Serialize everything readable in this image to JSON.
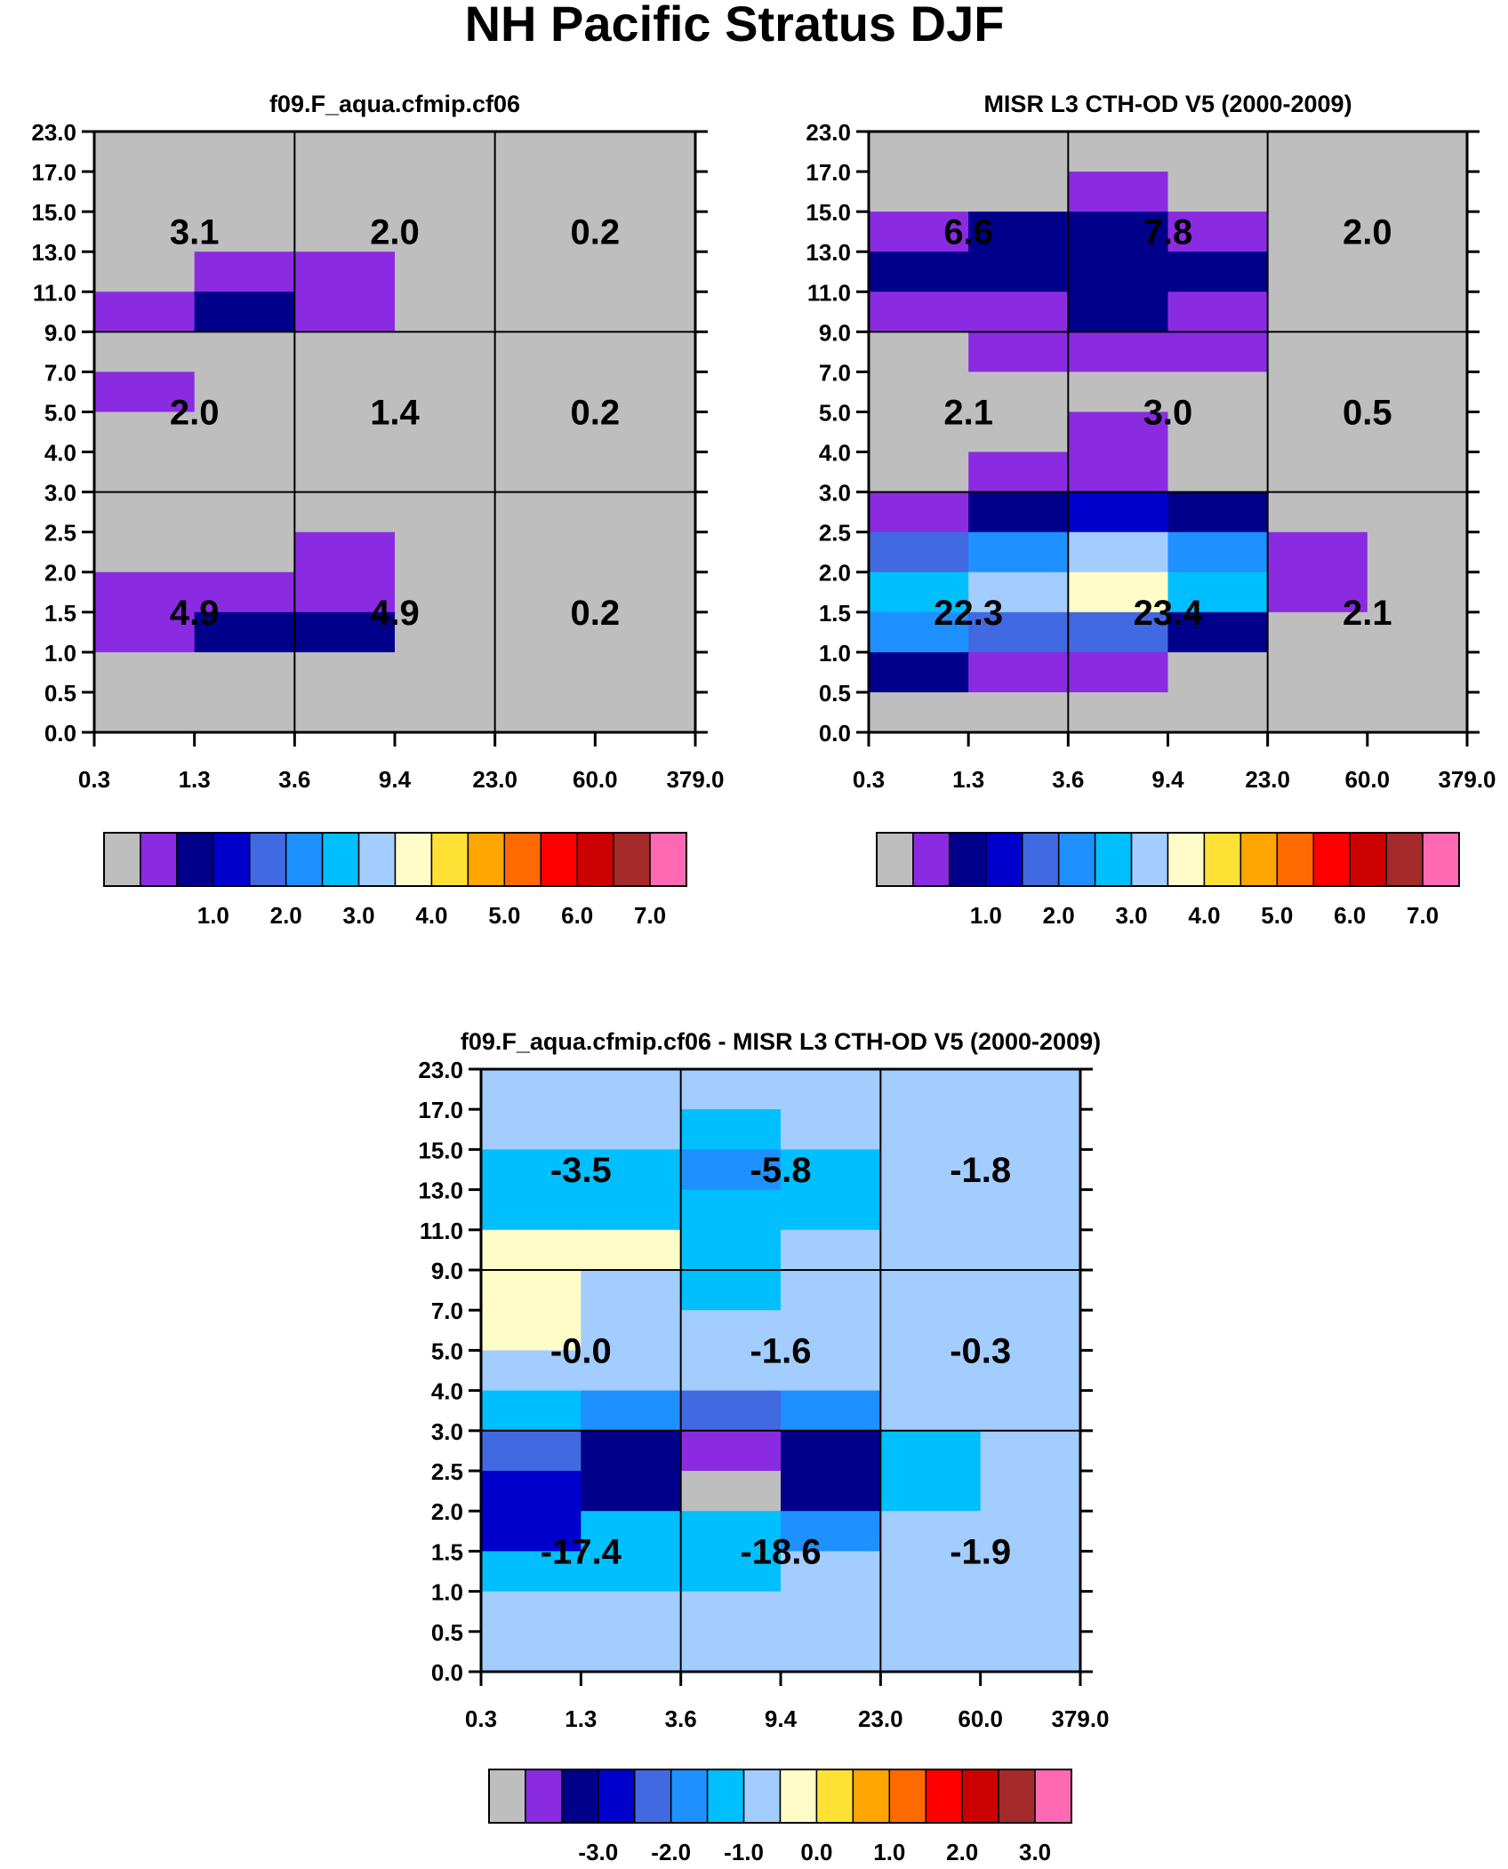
{
  "title": "NH Pacific Stratus DJF",
  "tau_ticks": [
    "0.3",
    "1.3",
    "3.6",
    "9.4",
    "23.0",
    "60.0",
    "379.0"
  ],
  "cth_ticks": [
    "0.0",
    "0.5",
    "1.0",
    "1.5",
    "2.0",
    "2.5",
    "3.0",
    "4.0",
    "5.0",
    "7.0",
    "9.0",
    "11.0",
    "13.0",
    "15.0",
    "17.0",
    "23.0"
  ],
  "colors": {
    "palette": [
      "#bebebe",
      "#8a2be2",
      "#00008b",
      "#0000cd",
      "#4169e1",
      "#1e90ff",
      "#00bfff",
      "#a2cdfe",
      "#fffcc8",
      "#ffe135",
      "#ffa500",
      "#ff6a00",
      "#ff0000",
      "#cd0000",
      "#a52a2a",
      "#ff69b4"
    ]
  },
  "chart_data": [
    {
      "id": "model",
      "type": "heatmap",
      "title": "f09.F_aqua.cfmip.cf06",
      "xlabel": "",
      "ylabel": "",
      "x_bins": [
        "0.3",
        "1.3",
        "3.6",
        "9.4",
        "23.0",
        "60.0",
        "379.0"
      ],
      "y_bins": [
        "0.0",
        "0.5",
        "1.0",
        "1.5",
        "2.0",
        "2.5",
        "3.0",
        "4.0",
        "5.0",
        "7.0",
        "9.0",
        "11.0",
        "13.0",
        "15.0",
        "17.0",
        "23.0"
      ],
      "color_index_grid_top_to_bottom": [
        [
          0,
          0,
          0,
          0,
          0,
          0
        ],
        [
          0,
          0,
          0,
          0,
          0,
          0
        ],
        [
          0,
          0,
          0,
          0,
          0,
          0
        ],
        [
          0,
          1,
          1,
          0,
          0,
          0
        ],
        [
          1,
          2,
          1,
          0,
          0,
          0
        ],
        [
          0,
          0,
          0,
          0,
          0,
          0
        ],
        [
          1,
          0,
          0,
          0,
          0,
          0
        ],
        [
          0,
          0,
          0,
          0,
          0,
          0
        ],
        [
          0,
          0,
          0,
          0,
          0,
          0
        ],
        [
          0,
          0,
          0,
          0,
          0,
          0
        ],
        [
          0,
          0,
          1,
          0,
          0,
          0
        ],
        [
          1,
          1,
          1,
          0,
          0,
          0
        ],
        [
          1,
          2,
          2,
          0,
          0,
          0
        ],
        [
          0,
          0,
          0,
          0,
          0,
          0
        ],
        [
          0,
          0,
          0,
          0,
          0,
          0
        ]
      ],
      "summary": [
        {
          "row": "high",
          "col": "thin",
          "label": "3.1"
        },
        {
          "row": "high",
          "col": "medium",
          "label": "2.0"
        },
        {
          "row": "high",
          "col": "thick",
          "label": "0.2"
        },
        {
          "row": "mid",
          "col": "thin",
          "label": "2.0"
        },
        {
          "row": "mid",
          "col": "medium",
          "label": "1.4"
        },
        {
          "row": "mid",
          "col": "thick",
          "label": "0.2"
        },
        {
          "row": "low",
          "col": "thin",
          "label": "4.9"
        },
        {
          "row": "low",
          "col": "medium",
          "label": "4.9"
        },
        {
          "row": "low",
          "col": "thick",
          "label": "0.2"
        }
      ],
      "colorbar": {
        "labels": [
          "1.0",
          "2.0",
          "3.0",
          "4.0",
          "5.0",
          "6.0",
          "7.0"
        ]
      }
    },
    {
      "id": "obs",
      "type": "heatmap",
      "title": "MISR L3 CTH-OD V5 (2000-2009)",
      "xlabel": "",
      "ylabel": "",
      "x_bins": [
        "0.3",
        "1.3",
        "3.6",
        "9.4",
        "23.0",
        "60.0",
        "379.0"
      ],
      "y_bins": [
        "0.0",
        "0.5",
        "1.0",
        "1.5",
        "2.0",
        "2.5",
        "3.0",
        "4.0",
        "5.0",
        "7.0",
        "9.0",
        "11.0",
        "13.0",
        "15.0",
        "17.0",
        "23.0"
      ],
      "color_index_grid_top_to_bottom": [
        [
          0,
          0,
          0,
          0,
          0,
          0
        ],
        [
          0,
          0,
          1,
          0,
          0,
          0
        ],
        [
          1,
          2,
          2,
          1,
          0,
          0
        ],
        [
          2,
          2,
          2,
          2,
          0,
          0
        ],
        [
          1,
          1,
          2,
          1,
          0,
          0
        ],
        [
          0,
          1,
          1,
          1,
          0,
          0
        ],
        [
          0,
          0,
          0,
          0,
          0,
          0
        ],
        [
          0,
          0,
          1,
          0,
          0,
          0
        ],
        [
          0,
          1,
          1,
          0,
          0,
          0
        ],
        [
          1,
          2,
          3,
          2,
          0,
          0
        ],
        [
          4,
          5,
          7,
          5,
          1,
          0
        ],
        [
          6,
          7,
          8,
          6,
          1,
          0
        ],
        [
          5,
          4,
          4,
          2,
          0,
          0
        ],
        [
          2,
          1,
          1,
          0,
          0,
          0
        ],
        [
          0,
          0,
          0,
          0,
          0,
          0
        ]
      ],
      "summary": [
        {
          "row": "high",
          "col": "thin",
          "label": "6.6"
        },
        {
          "row": "high",
          "col": "medium",
          "label": "7.8"
        },
        {
          "row": "high",
          "col": "thick",
          "label": "2.0"
        },
        {
          "row": "mid",
          "col": "thin",
          "label": "2.1"
        },
        {
          "row": "mid",
          "col": "medium",
          "label": "3.0"
        },
        {
          "row": "mid",
          "col": "thick",
          "label": "0.5"
        },
        {
          "row": "low",
          "col": "thin",
          "label": "22.3"
        },
        {
          "row": "low",
          "col": "medium",
          "label": "23.4"
        },
        {
          "row": "low",
          "col": "thick",
          "label": "2.1"
        }
      ],
      "colorbar": {
        "labels": [
          "1.0",
          "2.0",
          "3.0",
          "4.0",
          "5.0",
          "6.0",
          "7.0"
        ]
      }
    },
    {
      "id": "diff",
      "type": "heatmap",
      "title": "f09.F_aqua.cfmip.cf06 - MISR L3 CTH-OD V5 (2000-2009)",
      "xlabel": "",
      "ylabel": "",
      "x_bins": [
        "0.3",
        "1.3",
        "3.6",
        "9.4",
        "23.0",
        "60.0",
        "379.0"
      ],
      "y_bins": [
        "0.0",
        "0.5",
        "1.0",
        "1.5",
        "2.0",
        "2.5",
        "3.0",
        "4.0",
        "5.0",
        "7.0",
        "9.0",
        "11.0",
        "13.0",
        "15.0",
        "17.0",
        "23.0"
      ],
      "color_index_grid_top_to_bottom": [
        [
          7,
          7,
          7,
          7,
          7,
          7
        ],
        [
          7,
          7,
          6,
          7,
          7,
          7
        ],
        [
          6,
          6,
          5,
          6,
          7,
          7
        ],
        [
          6,
          6,
          6,
          6,
          7,
          7
        ],
        [
          8,
          8,
          6,
          7,
          7,
          7
        ],
        [
          8,
          7,
          6,
          7,
          7,
          7
        ],
        [
          8,
          7,
          7,
          7,
          7,
          7
        ],
        [
          7,
          7,
          7,
          7,
          7,
          7
        ],
        [
          6,
          5,
          4,
          5,
          7,
          7
        ],
        [
          4,
          2,
          1,
          2,
          6,
          7
        ],
        [
          3,
          2,
          0,
          2,
          6,
          7
        ],
        [
          3,
          6,
          6,
          5,
          7,
          7
        ],
        [
          6,
          6,
          6,
          7,
          7,
          7
        ],
        [
          7,
          7,
          7,
          7,
          7,
          7
        ],
        [
          7,
          7,
          7,
          7,
          7,
          7
        ]
      ],
      "summary": [
        {
          "row": "high",
          "col": "thin",
          "label": "-3.5"
        },
        {
          "row": "high",
          "col": "medium",
          "label": "-5.8"
        },
        {
          "row": "high",
          "col": "thick",
          "label": "-1.8"
        },
        {
          "row": "mid",
          "col": "thin",
          "label": "-0.0"
        },
        {
          "row": "mid",
          "col": "medium",
          "label": "-1.6"
        },
        {
          "row": "mid",
          "col": "thick",
          "label": "-0.3"
        },
        {
          "row": "low",
          "col": "thin",
          "label": "-17.4"
        },
        {
          "row": "low",
          "col": "medium",
          "label": "-18.6"
        },
        {
          "row": "low",
          "col": "thick",
          "label": "-1.9"
        }
      ],
      "colorbar": {
        "labels": [
          "-3.0",
          "-2.0",
          "-1.0",
          "0.0",
          "1.0",
          "2.0",
          "3.0"
        ]
      }
    }
  ]
}
